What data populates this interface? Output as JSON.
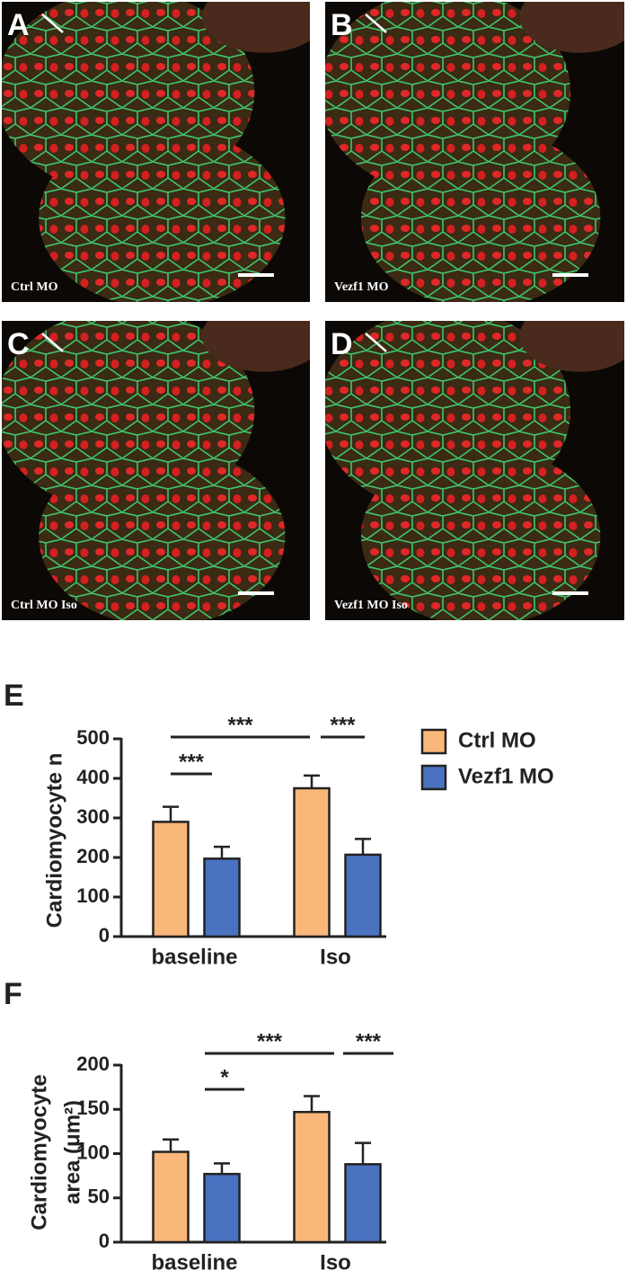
{
  "image_panels": [
    {
      "label": "A",
      "caption": "Ctrl MO"
    },
    {
      "label": "B",
      "caption": "Vezf1 MO"
    },
    {
      "label": "C",
      "caption": "Ctrl MO Iso"
    },
    {
      "label": "D",
      "caption": "Vezf1 MO Iso"
    }
  ],
  "chart_data": [
    {
      "type": "bar",
      "panel_label": "E",
      "y_label": [
        "Cardiomyocyte n"
      ],
      "categories": [
        "baseline",
        "Iso"
      ],
      "series": [
        {
          "name": "Ctrl MO",
          "color": "#f9b77a",
          "values": [
            290,
            375
          ],
          "errors": [
            38,
            32
          ]
        },
        {
          "name": "Vezf1 MO",
          "color": "#4a72c0",
          "values": [
            197,
            207
          ],
          "errors": [
            30,
            40
          ]
        }
      ],
      "ylim": [
        0,
        500
      ],
      "yticks": [
        0,
        100,
        200,
        300,
        400,
        500
      ],
      "annotations": [
        "***",
        "***",
        "***"
      ],
      "legend": "right"
    },
    {
      "type": "bar",
      "panel_label": "F",
      "y_label": [
        "Cardiomyocyte",
        "area (μm²)"
      ],
      "categories": [
        "baseline",
        "Iso"
      ],
      "series": [
        {
          "name": "Ctrl MO",
          "color": "#f9b77a",
          "values": [
            102,
            147
          ],
          "errors": [
            14,
            18
          ]
        },
        {
          "name": "Vezf1 MO",
          "color": "#4a72c0",
          "values": [
            77,
            88
          ],
          "errors": [
            12,
            24
          ]
        }
      ],
      "ylim": [
        0,
        200
      ],
      "yticks": [
        0,
        50,
        100,
        150,
        200
      ],
      "annotations": [
        "***",
        "*",
        "***"
      ],
      "legend": "none"
    }
  ]
}
